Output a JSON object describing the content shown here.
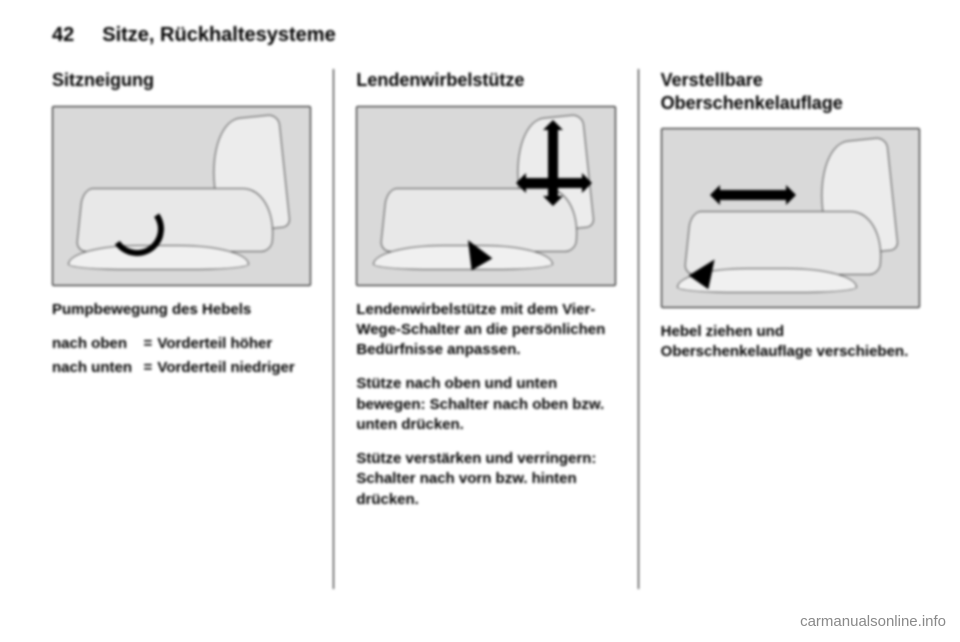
{
  "header": {
    "page_number": "42",
    "section": "Sitze, Rückhaltesysteme"
  },
  "columns": {
    "left": {
      "heading": "Sitzneigung",
      "caption": "Pumpbewegung des Hebels",
      "definitions": [
        {
          "term": "nach oben",
          "eq": "=",
          "desc": "Vorderteil höher"
        },
        {
          "term": "nach unten",
          "eq": "=",
          "desc": "Vorderteil niedriger"
        }
      ]
    },
    "middle": {
      "heading": "Lendenwirbelstütze",
      "paragraphs": [
        "Lendenwirbelstütze mit dem Vier-Wege-Schalter an die persönlichen Bedürfnisse anpassen.",
        "Stütze nach oben und unten bewegen: Schalter nach oben bzw. unten drücken.",
        "Stütze verstärken und verringern: Schalter nach vorn bzw. hinten drücken."
      ]
    },
    "right": {
      "heading": "Verstellbare Oberschenkelauflage",
      "paragraphs": [
        "Hebel ziehen und Oberschenkelauflage verschieben."
      ]
    }
  },
  "watermark": "carmanualsonline.info"
}
